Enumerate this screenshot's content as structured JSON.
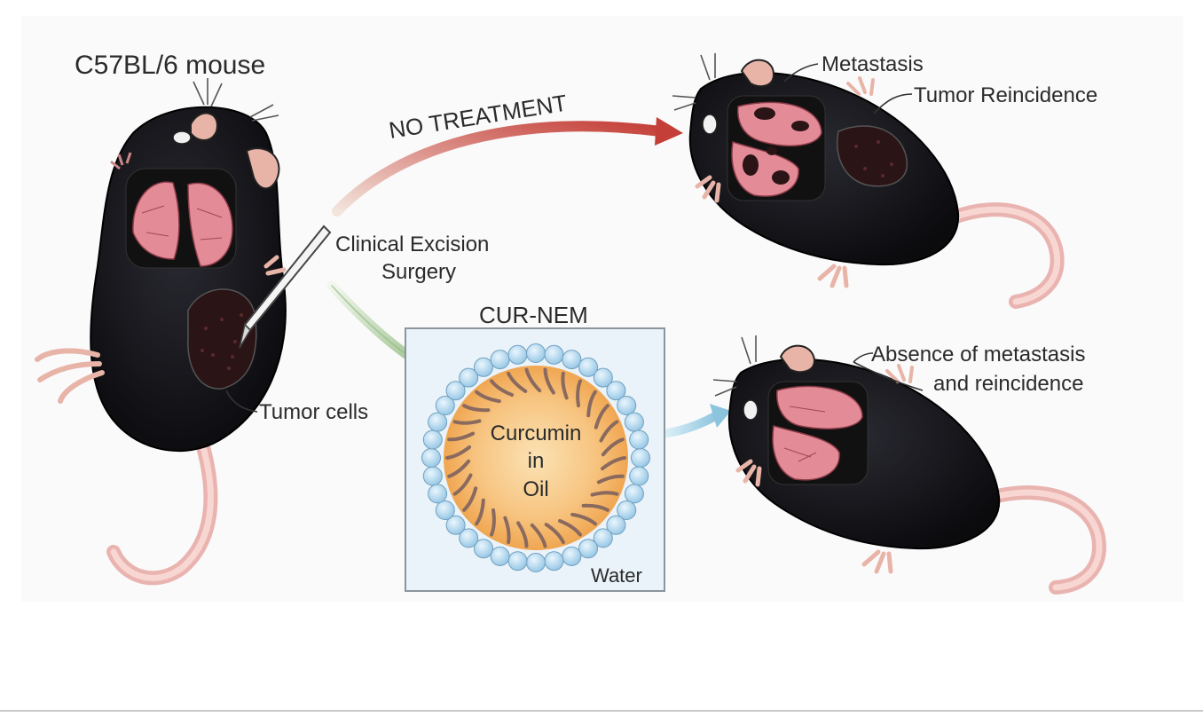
{
  "labels": {
    "mouse_strain": "C57BL/6 mouse",
    "no_treatment": "NO TREATMENT",
    "metastasis": "Metastasis",
    "tumor_reincidence": "Tumor Reincidence",
    "surgery_line1": "Clinical Excision",
    "surgery_line2": "Surgery",
    "nanoemulsion": "CUR-NEM",
    "tumor_cells": "Tumor cells",
    "core_line1": "Curcumin",
    "core_line2": "in",
    "core_line3": "Oil",
    "water": "Water",
    "absence_line1": "Absence of metastasis",
    "absence_line2": "and reincidence"
  },
  "colors": {
    "mouse_body": "#141418",
    "lung_pink": "#e48b98",
    "tumor_dark": "#2a1416",
    "skin_pink": "#f2bcb8",
    "arrow_red": "#c8463f",
    "arrow_green": "#bfd6b2",
    "arrow_blue": "#9fcfe6",
    "droplet_blue": "#b6daf1",
    "oil_core": "#f6b66a",
    "surfactant": "#8a6a5e",
    "box_fill": "#eaf3f9"
  }
}
